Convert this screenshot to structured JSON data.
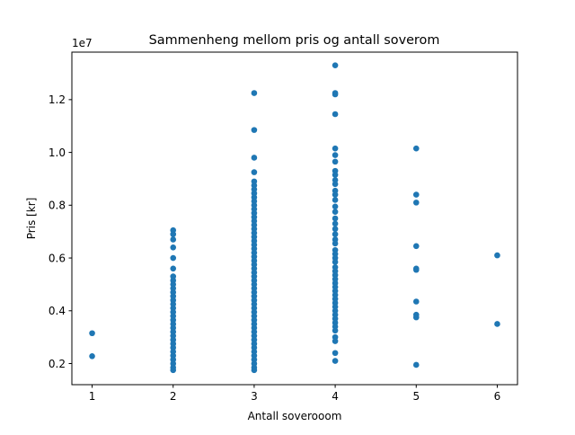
{
  "chart_data": {
    "type": "scatter",
    "title": "Sammenheng mellom pris og antall soverom",
    "xlabel": "Antall soverooom",
    "ylabel": "Pris [kr]",
    "y_offset_label": "1e7",
    "xlim": [
      0.75,
      6.25
    ],
    "ylim": [
      1200000,
      13800000
    ],
    "x_ticks": [
      1,
      2,
      3,
      4,
      5,
      6
    ],
    "x_tick_labels": [
      "1",
      "2",
      "3",
      "4",
      "5",
      "6"
    ],
    "y_ticks": [
      2000000,
      4000000,
      6000000,
      8000000,
      10000000,
      12000000
    ],
    "y_tick_labels": [
      "0.2",
      "0.4",
      "0.6",
      "0.8",
      "1.0",
      "1.2"
    ],
    "grid": false,
    "point_color": "#1f77b4",
    "points": [
      {
        "x": 1,
        "y": 3150000
      },
      {
        "x": 1,
        "y": 2280000
      },
      {
        "x": 2,
        "y": 7050000
      },
      {
        "x": 2,
        "y": 6900000
      },
      {
        "x": 2,
        "y": 6700000
      },
      {
        "x": 2,
        "y": 6400000
      },
      {
        "x": 2,
        "y": 6000000
      },
      {
        "x": 2,
        "y": 5600000
      },
      {
        "x": 2,
        "y": 5300000
      },
      {
        "x": 2,
        "y": 5150000
      },
      {
        "x": 2,
        "y": 5000000
      },
      {
        "x": 2,
        "y": 4850000
      },
      {
        "x": 2,
        "y": 4700000
      },
      {
        "x": 2,
        "y": 4550000
      },
      {
        "x": 2,
        "y": 4400000
      },
      {
        "x": 2,
        "y": 4250000
      },
      {
        "x": 2,
        "y": 4100000
      },
      {
        "x": 2,
        "y": 3950000
      },
      {
        "x": 2,
        "y": 3800000
      },
      {
        "x": 2,
        "y": 3650000
      },
      {
        "x": 2,
        "y": 3500000
      },
      {
        "x": 2,
        "y": 3350000
      },
      {
        "x": 2,
        "y": 3200000
      },
      {
        "x": 2,
        "y": 3050000
      },
      {
        "x": 2,
        "y": 2900000
      },
      {
        "x": 2,
        "y": 2750000
      },
      {
        "x": 2,
        "y": 2600000
      },
      {
        "x": 2,
        "y": 2450000
      },
      {
        "x": 2,
        "y": 2300000
      },
      {
        "x": 2,
        "y": 2150000
      },
      {
        "x": 2,
        "y": 2000000
      },
      {
        "x": 2,
        "y": 1850000
      },
      {
        "x": 2,
        "y": 1750000
      },
      {
        "x": 3,
        "y": 12250000
      },
      {
        "x": 3,
        "y": 10850000
      },
      {
        "x": 3,
        "y": 9800000
      },
      {
        "x": 3,
        "y": 9250000
      },
      {
        "x": 3,
        "y": 8900000
      },
      {
        "x": 3,
        "y": 8750000
      },
      {
        "x": 3,
        "y": 8600000
      },
      {
        "x": 3,
        "y": 8450000
      },
      {
        "x": 3,
        "y": 8300000
      },
      {
        "x": 3,
        "y": 8150000
      },
      {
        "x": 3,
        "y": 8000000
      },
      {
        "x": 3,
        "y": 7850000
      },
      {
        "x": 3,
        "y": 7700000
      },
      {
        "x": 3,
        "y": 7550000
      },
      {
        "x": 3,
        "y": 7400000
      },
      {
        "x": 3,
        "y": 7250000
      },
      {
        "x": 3,
        "y": 7100000
      },
      {
        "x": 3,
        "y": 6950000
      },
      {
        "x": 3,
        "y": 6800000
      },
      {
        "x": 3,
        "y": 6650000
      },
      {
        "x": 3,
        "y": 6500000
      },
      {
        "x": 3,
        "y": 6350000
      },
      {
        "x": 3,
        "y": 6200000
      },
      {
        "x": 3,
        "y": 6050000
      },
      {
        "x": 3,
        "y": 5900000
      },
      {
        "x": 3,
        "y": 5750000
      },
      {
        "x": 3,
        "y": 5600000
      },
      {
        "x": 3,
        "y": 5450000
      },
      {
        "x": 3,
        "y": 5300000
      },
      {
        "x": 3,
        "y": 5150000
      },
      {
        "x": 3,
        "y": 5000000
      },
      {
        "x": 3,
        "y": 4850000
      },
      {
        "x": 3,
        "y": 4700000
      },
      {
        "x": 3,
        "y": 4550000
      },
      {
        "x": 3,
        "y": 4400000
      },
      {
        "x": 3,
        "y": 4250000
      },
      {
        "x": 3,
        "y": 4100000
      },
      {
        "x": 3,
        "y": 3950000
      },
      {
        "x": 3,
        "y": 3800000
      },
      {
        "x": 3,
        "y": 3650000
      },
      {
        "x": 3,
        "y": 3500000
      },
      {
        "x": 3,
        "y": 3350000
      },
      {
        "x": 3,
        "y": 3200000
      },
      {
        "x": 3,
        "y": 3050000
      },
      {
        "x": 3,
        "y": 2900000
      },
      {
        "x": 3,
        "y": 2750000
      },
      {
        "x": 3,
        "y": 2600000
      },
      {
        "x": 3,
        "y": 2450000
      },
      {
        "x": 3,
        "y": 2300000
      },
      {
        "x": 3,
        "y": 2150000
      },
      {
        "x": 3,
        "y": 2000000
      },
      {
        "x": 3,
        "y": 1850000
      },
      {
        "x": 3,
        "y": 1750000
      },
      {
        "x": 4,
        "y": 13300000
      },
      {
        "x": 4,
        "y": 12250000
      },
      {
        "x": 4,
        "y": 12200000
      },
      {
        "x": 4,
        "y": 11450000
      },
      {
        "x": 4,
        "y": 10150000
      },
      {
        "x": 4,
        "y": 9900000
      },
      {
        "x": 4,
        "y": 9650000
      },
      {
        "x": 4,
        "y": 9300000
      },
      {
        "x": 4,
        "y": 9150000
      },
      {
        "x": 4,
        "y": 8950000
      },
      {
        "x": 4,
        "y": 8800000
      },
      {
        "x": 4,
        "y": 8550000
      },
      {
        "x": 4,
        "y": 8400000
      },
      {
        "x": 4,
        "y": 8200000
      },
      {
        "x": 4,
        "y": 7950000
      },
      {
        "x": 4,
        "y": 7750000
      },
      {
        "x": 4,
        "y": 7500000
      },
      {
        "x": 4,
        "y": 7300000
      },
      {
        "x": 4,
        "y": 7100000
      },
      {
        "x": 4,
        "y": 6900000
      },
      {
        "x": 4,
        "y": 6700000
      },
      {
        "x": 4,
        "y": 6550000
      },
      {
        "x": 4,
        "y": 6300000
      },
      {
        "x": 4,
        "y": 6150000
      },
      {
        "x": 4,
        "y": 6000000
      },
      {
        "x": 4,
        "y": 5850000
      },
      {
        "x": 4,
        "y": 5650000
      },
      {
        "x": 4,
        "y": 5500000
      },
      {
        "x": 4,
        "y": 5350000
      },
      {
        "x": 4,
        "y": 5200000
      },
      {
        "x": 4,
        "y": 5050000
      },
      {
        "x": 4,
        "y": 4900000
      },
      {
        "x": 4,
        "y": 4750000
      },
      {
        "x": 4,
        "y": 4600000
      },
      {
        "x": 4,
        "y": 4450000
      },
      {
        "x": 4,
        "y": 4300000
      },
      {
        "x": 4,
        "y": 4150000
      },
      {
        "x": 4,
        "y": 4000000
      },
      {
        "x": 4,
        "y": 3850000
      },
      {
        "x": 4,
        "y": 3700000
      },
      {
        "x": 4,
        "y": 3550000
      },
      {
        "x": 4,
        "y": 3400000
      },
      {
        "x": 4,
        "y": 3250000
      },
      {
        "x": 4,
        "y": 3000000
      },
      {
        "x": 4,
        "y": 2850000
      },
      {
        "x": 4,
        "y": 2400000
      },
      {
        "x": 4,
        "y": 2100000
      },
      {
        "x": 5,
        "y": 10150000
      },
      {
        "x": 5,
        "y": 8400000
      },
      {
        "x": 5,
        "y": 8100000
      },
      {
        "x": 5,
        "y": 6450000
      },
      {
        "x": 5,
        "y": 5600000
      },
      {
        "x": 5,
        "y": 5550000
      },
      {
        "x": 5,
        "y": 4350000
      },
      {
        "x": 5,
        "y": 3850000
      },
      {
        "x": 5,
        "y": 3750000
      },
      {
        "x": 5,
        "y": 1950000
      },
      {
        "x": 6,
        "y": 6100000
      },
      {
        "x": 6,
        "y": 3500000
      }
    ]
  }
}
